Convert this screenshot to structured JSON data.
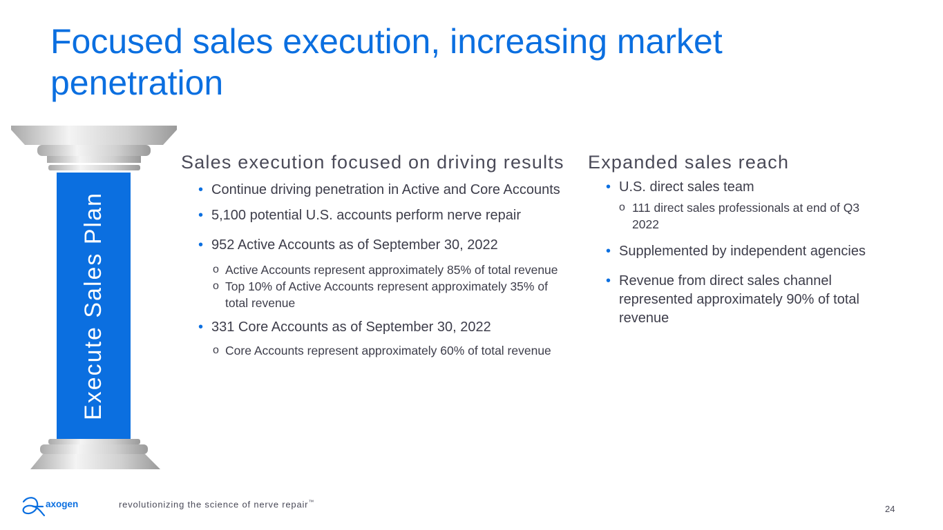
{
  "title": "Focused sales execution, increasing market penetration",
  "pillar_label": "Execute Sales Plan",
  "left": {
    "heading": "Sales execution focused on driving results",
    "b1": "Continue driving penetration in Active and Core Accounts",
    "b2": "5,100 potential U.S. accounts perform nerve repair",
    "b3": "952 Active Accounts as of September 30, 2022",
    "b3_sub1": "Active Accounts represent approximately 85% of total revenue",
    "b3_sub2": "Top 10% of Active Accounts represent approximately 35% of total revenue",
    "b4": "331 Core Accounts as of September 30, 2022",
    "b4_sub1": "Core Accounts represent approximately 60% of total revenue"
  },
  "right": {
    "heading": "Expanded sales reach",
    "b1": "U.S. direct sales team",
    "b1_sub1": "111 direct sales professionals at end of Q3 2022",
    "b2": "Supplemented by independent agencies",
    "b3": "Revenue from direct sales channel represented approximately 90% of total revenue"
  },
  "footer": {
    "logo_text": "axogen",
    "tagline": "revolutionizing the science of nerve repair",
    "trademark": "™",
    "page_number": "24"
  },
  "colors": {
    "accent": "#0b6fe0",
    "text": "#3d3d4a"
  }
}
